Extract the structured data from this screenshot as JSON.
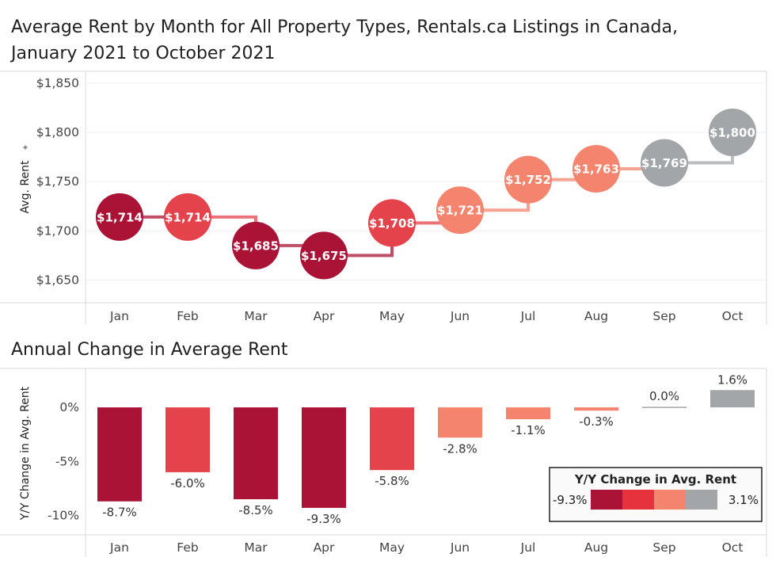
{
  "page": {
    "title_line1": "Average Rent by Month for All Property Types, Rentals.ca Listings in Canada,",
    "title_line2": "January 2021 to October 2021",
    "subtitle": "Annual Change in Average Rent"
  },
  "chart_data": [
    {
      "type": "line",
      "title": "Average Rent by Month for All Property Types, Rentals.ca Listings in Canada, January 2021 to October 2021",
      "ylabel": "Avg. Rent",
      "xlabel": "",
      "categories": [
        "Jan",
        "Feb",
        "Mar",
        "Apr",
        "May",
        "Jun",
        "Jul",
        "Aug",
        "Sep",
        "Oct"
      ],
      "values": [
        1714,
        1714,
        1685,
        1675,
        1708,
        1721,
        1752,
        1763,
        1769,
        1800
      ],
      "value_labels": [
        "$1,714",
        "$1,714",
        "$1,685",
        "$1,675",
        "$1,708",
        "$1,721",
        "$1,752",
        "$1,763",
        "$1,769",
        "$1,800"
      ],
      "yticks": [
        1650,
        1700,
        1750,
        1800,
        1850
      ],
      "ytick_labels": [
        "$1,650",
        "$1,700",
        "$1,750",
        "$1,800",
        "$1,850"
      ],
      "ylim": [
        1627,
        1862
      ],
      "line_style": "step",
      "grid": true,
      "colored_by": "Y/Y Change in Avg. Rent"
    },
    {
      "type": "bar",
      "title": "Annual Change in Average Rent",
      "ylabel": "Y/Y Change in Avg. Rent",
      "xlabel": "",
      "categories": [
        "Jan",
        "Feb",
        "Mar",
        "Apr",
        "May",
        "Jun",
        "Jul",
        "Aug",
        "Sep",
        "Oct"
      ],
      "values": [
        -8.7,
        -6.0,
        -8.5,
        -9.3,
        -5.8,
        -2.8,
        -1.1,
        -0.3,
        0.0,
        1.6
      ],
      "value_labels": [
        "-8.7%",
        "-6.0%",
        "-8.5%",
        "-9.3%",
        "-5.8%",
        "-2.8%",
        "-1.1%",
        "-0.3%",
        "0.0%",
        "1.6%"
      ],
      "yticks": [
        0,
        -5,
        -10
      ],
      "ytick_labels": [
        "0%",
        "-5%",
        "-10%"
      ],
      "ylim": [
        -11.8,
        3.6
      ],
      "legend": {
        "title": "Y/Y Change in Avg. Rent",
        "min_label": "-9.3%",
        "max_label": "3.1%",
        "min": -9.3,
        "max": 3.1,
        "placement": "bottom-right",
        "colors": [
          "#aa1336",
          "#e5323d",
          "#f4846d",
          "#a3a6a8"
        ]
      },
      "colors": [
        "#aa1336",
        "#e5434c",
        "#aa1336",
        "#aa1336",
        "#e5434c",
        "#f4846d",
        "#f4846d",
        "#f4846d",
        "#a3a6a8",
        "#a3a6a8"
      ]
    }
  ]
}
